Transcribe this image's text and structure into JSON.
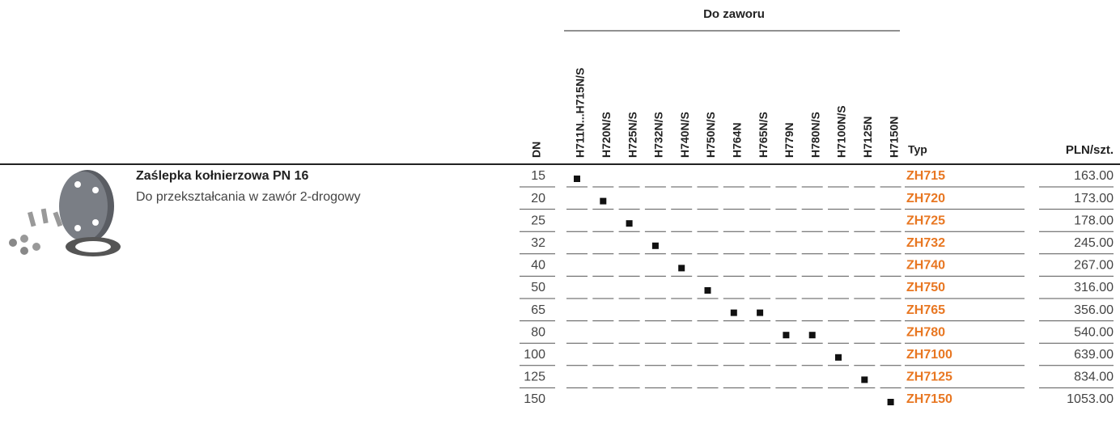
{
  "product": {
    "title": "Zaślepka kołnierzowa PN 16",
    "subtitle": "Do przekształcania w zawór 2-drogowy"
  },
  "table": {
    "group_header": "Do zaworu",
    "dn_header": "DN",
    "valve_columns": [
      "H711N...H715N/S",
      "H720N/S",
      "H725N/S",
      "H732N/S",
      "H740N/S",
      "H750N/S",
      "H764N",
      "H765N/S",
      "H779N",
      "H780N/S",
      "H7100N/S",
      "H7125N",
      "H7150N"
    ],
    "type_header": "Typ",
    "price_header": "PLN/szt.",
    "rows": [
      {
        "dn": "15",
        "marks": [
          0
        ],
        "type": "ZH715",
        "price": "163.00"
      },
      {
        "dn": "20",
        "marks": [
          1
        ],
        "type": "ZH720",
        "price": "173.00"
      },
      {
        "dn": "25",
        "marks": [
          2
        ],
        "type": "ZH725",
        "price": "178.00"
      },
      {
        "dn": "32",
        "marks": [
          3
        ],
        "type": "ZH732",
        "price": "245.00"
      },
      {
        "dn": "40",
        "marks": [
          4
        ],
        "type": "ZH740",
        "price": "267.00"
      },
      {
        "dn": "50",
        "marks": [
          5
        ],
        "type": "ZH750",
        "price": "316.00"
      },
      {
        "dn": "65",
        "marks": [
          6,
          7
        ],
        "type": "ZH765",
        "price": "356.00"
      },
      {
        "dn": "80",
        "marks": [
          8,
          9
        ],
        "type": "ZH780",
        "price": "540.00"
      },
      {
        "dn": "100",
        "marks": [
          10
        ],
        "type": "ZH7100",
        "price": "639.00"
      },
      {
        "dn": "125",
        "marks": [
          11
        ],
        "type": "ZH7125",
        "price": "834.00"
      },
      {
        "dn": "150",
        "marks": [
          12
        ],
        "type": "ZH7150",
        "price": "1053.00"
      }
    ]
  }
}
